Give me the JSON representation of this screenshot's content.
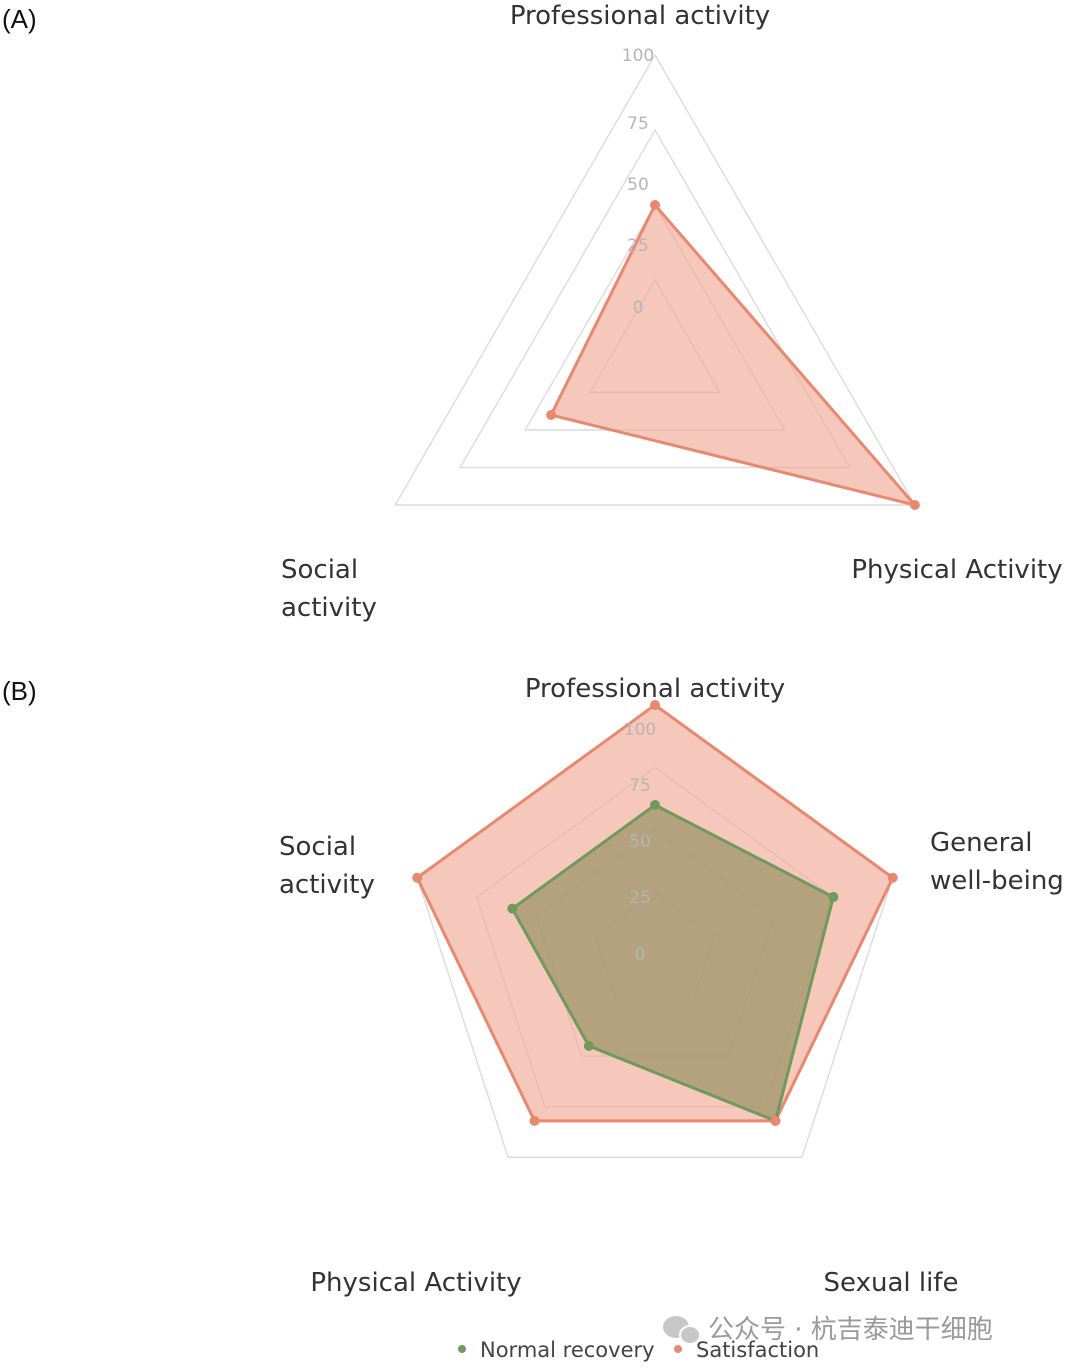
{
  "chart_data": [
    {
      "type": "radar",
      "panel_label": "(A)",
      "axes": [
        "Professional activity",
        "Physical Activity",
        "Social activity"
      ],
      "axis_label_lines": [
        [
          "Professional activity"
        ],
        [
          "Physical Activity"
        ],
        [
          "Social",
          "activity"
        ]
      ],
      "r_ticks": [
        "0",
        "25",
        "50",
        "75",
        "100"
      ],
      "r_range": [
        0,
        100
      ],
      "series": [
        {
          "values": [
            50,
            100,
            40
          ],
          "color": "#e8896f",
          "fill": "#f0a592"
        }
      ]
    },
    {
      "type": "radar",
      "panel_label": "(B)",
      "axes": [
        "Professional activity",
        "General well-being",
        "Sexual life",
        "Physical Activity",
        "Social activity"
      ],
      "axis_label_lines": [
        [
          "Professional activity"
        ],
        [
          "General",
          "well-being"
        ],
        [
          "Sexual life"
        ],
        [
          "Physical Activity"
        ],
        [
          "Social",
          "activity"
        ]
      ],
      "r_ticks": [
        "0",
        "25",
        "50",
        "75",
        "100"
      ],
      "r_range": [
        0,
        100
      ],
      "series": [
        {
          "name": "Normal recovery",
          "values": [
            60,
            75,
            82,
            45,
            60
          ],
          "color": "#6f9a5c",
          "fill": "#9e9468"
        },
        {
          "name": "Satisfaction",
          "values": [
            100,
            100,
            82,
            82,
            100
          ],
          "color": "#e8896f",
          "fill": "#f0a592"
        }
      ],
      "legend": [
        "Normal recovery",
        "Satisfaction"
      ],
      "legend_position": "bottom"
    }
  ],
  "watermark": {
    "text": "公众号 · 杭吉泰迪干细胞",
    "icon": "wechat-icon"
  }
}
